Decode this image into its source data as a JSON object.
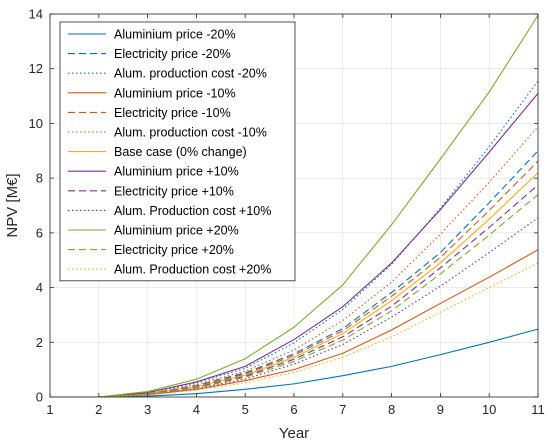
{
  "chart_data": {
    "type": "line",
    "xlabel": "Year",
    "ylabel": "NPV [M€]",
    "xlim": [
      1,
      11
    ],
    "ylim": [
      0,
      14
    ],
    "xticks": [
      "1",
      "2",
      "3",
      "4",
      "5",
      "6",
      "7",
      "8",
      "9",
      "10",
      "11"
    ],
    "yticks": [
      "0",
      "2",
      "4",
      "6",
      "8",
      "10",
      "12",
      "14"
    ],
    "grid": true,
    "legend_position": "top-left",
    "x": [
      1,
      2,
      3,
      4,
      5,
      6,
      7,
      8,
      9,
      10,
      11
    ],
    "series": [
      {
        "name": "Aluminium price -20%",
        "color": "#0072BD",
        "dash": "solid",
        "values": [
          0,
          0,
          0.03,
          0.12,
          0.28,
          0.48,
          0.78,
          1.12,
          1.55,
          2.0,
          2.48
        ]
      },
      {
        "name": "Electricity price -20%",
        "color": "#0072BD",
        "dash": "dashed",
        "values": [
          0,
          0,
          0.12,
          0.42,
          0.88,
          1.58,
          2.5,
          3.82,
          5.28,
          7.1,
          9.0
        ]
      },
      {
        "name": "Alum. production cost -20%",
        "color": "#0072BD",
        "dash": "dotted",
        "values": [
          0,
          0,
          0.15,
          0.52,
          1.05,
          1.98,
          3.2,
          4.85,
          6.9,
          9.15,
          11.55
        ]
      },
      {
        "name": "Aluminium price -10%",
        "color": "#D95319",
        "dash": "solid",
        "values": [
          0,
          0,
          0.08,
          0.28,
          0.6,
          1.0,
          1.6,
          2.45,
          3.42,
          4.38,
          5.38
        ]
      },
      {
        "name": "Electricity price -10%",
        "color": "#D95319",
        "dash": "dashed",
        "values": [
          0,
          0,
          0.12,
          0.4,
          0.84,
          1.52,
          2.42,
          3.68,
          5.1,
          6.82,
          8.62
        ]
      },
      {
        "name": "Alum. production cost -10%",
        "color": "#D95319",
        "dash": "dotted",
        "values": [
          0,
          0,
          0.14,
          0.46,
          0.94,
          1.72,
          2.8,
          4.2,
          5.95,
          7.85,
          9.88
        ]
      },
      {
        "name": "Base case (0% change)",
        "color": "#EDB120",
        "dash": "solid",
        "values": [
          0,
          0,
          0.12,
          0.38,
          0.8,
          1.45,
          2.32,
          3.52,
          4.9,
          6.5,
          8.2
        ]
      },
      {
        "name": "Aluminium price +10%",
        "color": "#7E2F8E",
        "dash": "solid",
        "values": [
          0,
          0,
          0.16,
          0.55,
          1.12,
          2.1,
          3.3,
          4.9,
          6.85,
          8.95,
          11.1
        ]
      },
      {
        "name": "Electricity price +10%",
        "color": "#7E2F8E",
        "dash": "dashed",
        "values": [
          0,
          0,
          0.11,
          0.36,
          0.76,
          1.38,
          2.2,
          3.32,
          4.72,
          6.2,
          7.75
        ]
      },
      {
        "name": "Alum. Production cost +10%",
        "color": "#7E2F8E",
        "dash": "dotted",
        "values": [
          0,
          0,
          0.1,
          0.32,
          0.66,
          1.2,
          1.92,
          2.92,
          4.05,
          5.28,
          6.55
        ]
      },
      {
        "name": "Aluminium price +20%",
        "color": "#77AC30",
        "dash": "solid",
        "values": [
          0,
          0,
          0.2,
          0.65,
          1.4,
          2.55,
          4.1,
          6.3,
          8.7,
          11.15,
          13.95
        ]
      },
      {
        "name": "Electricity price +20%",
        "color": "#77AC30",
        "dash": "dashed",
        "values": [
          0,
          0,
          0.1,
          0.34,
          0.72,
          1.3,
          2.08,
          3.15,
          4.5,
          5.92,
          7.4
        ]
      },
      {
        "name": "Alum. Production cost +20%",
        "color": "#EDB120",
        "dash": "dotted",
        "values": [
          0,
          0,
          0.07,
          0.25,
          0.52,
          0.9,
          1.45,
          2.2,
          3.1,
          4.0,
          4.9
        ]
      }
    ]
  }
}
